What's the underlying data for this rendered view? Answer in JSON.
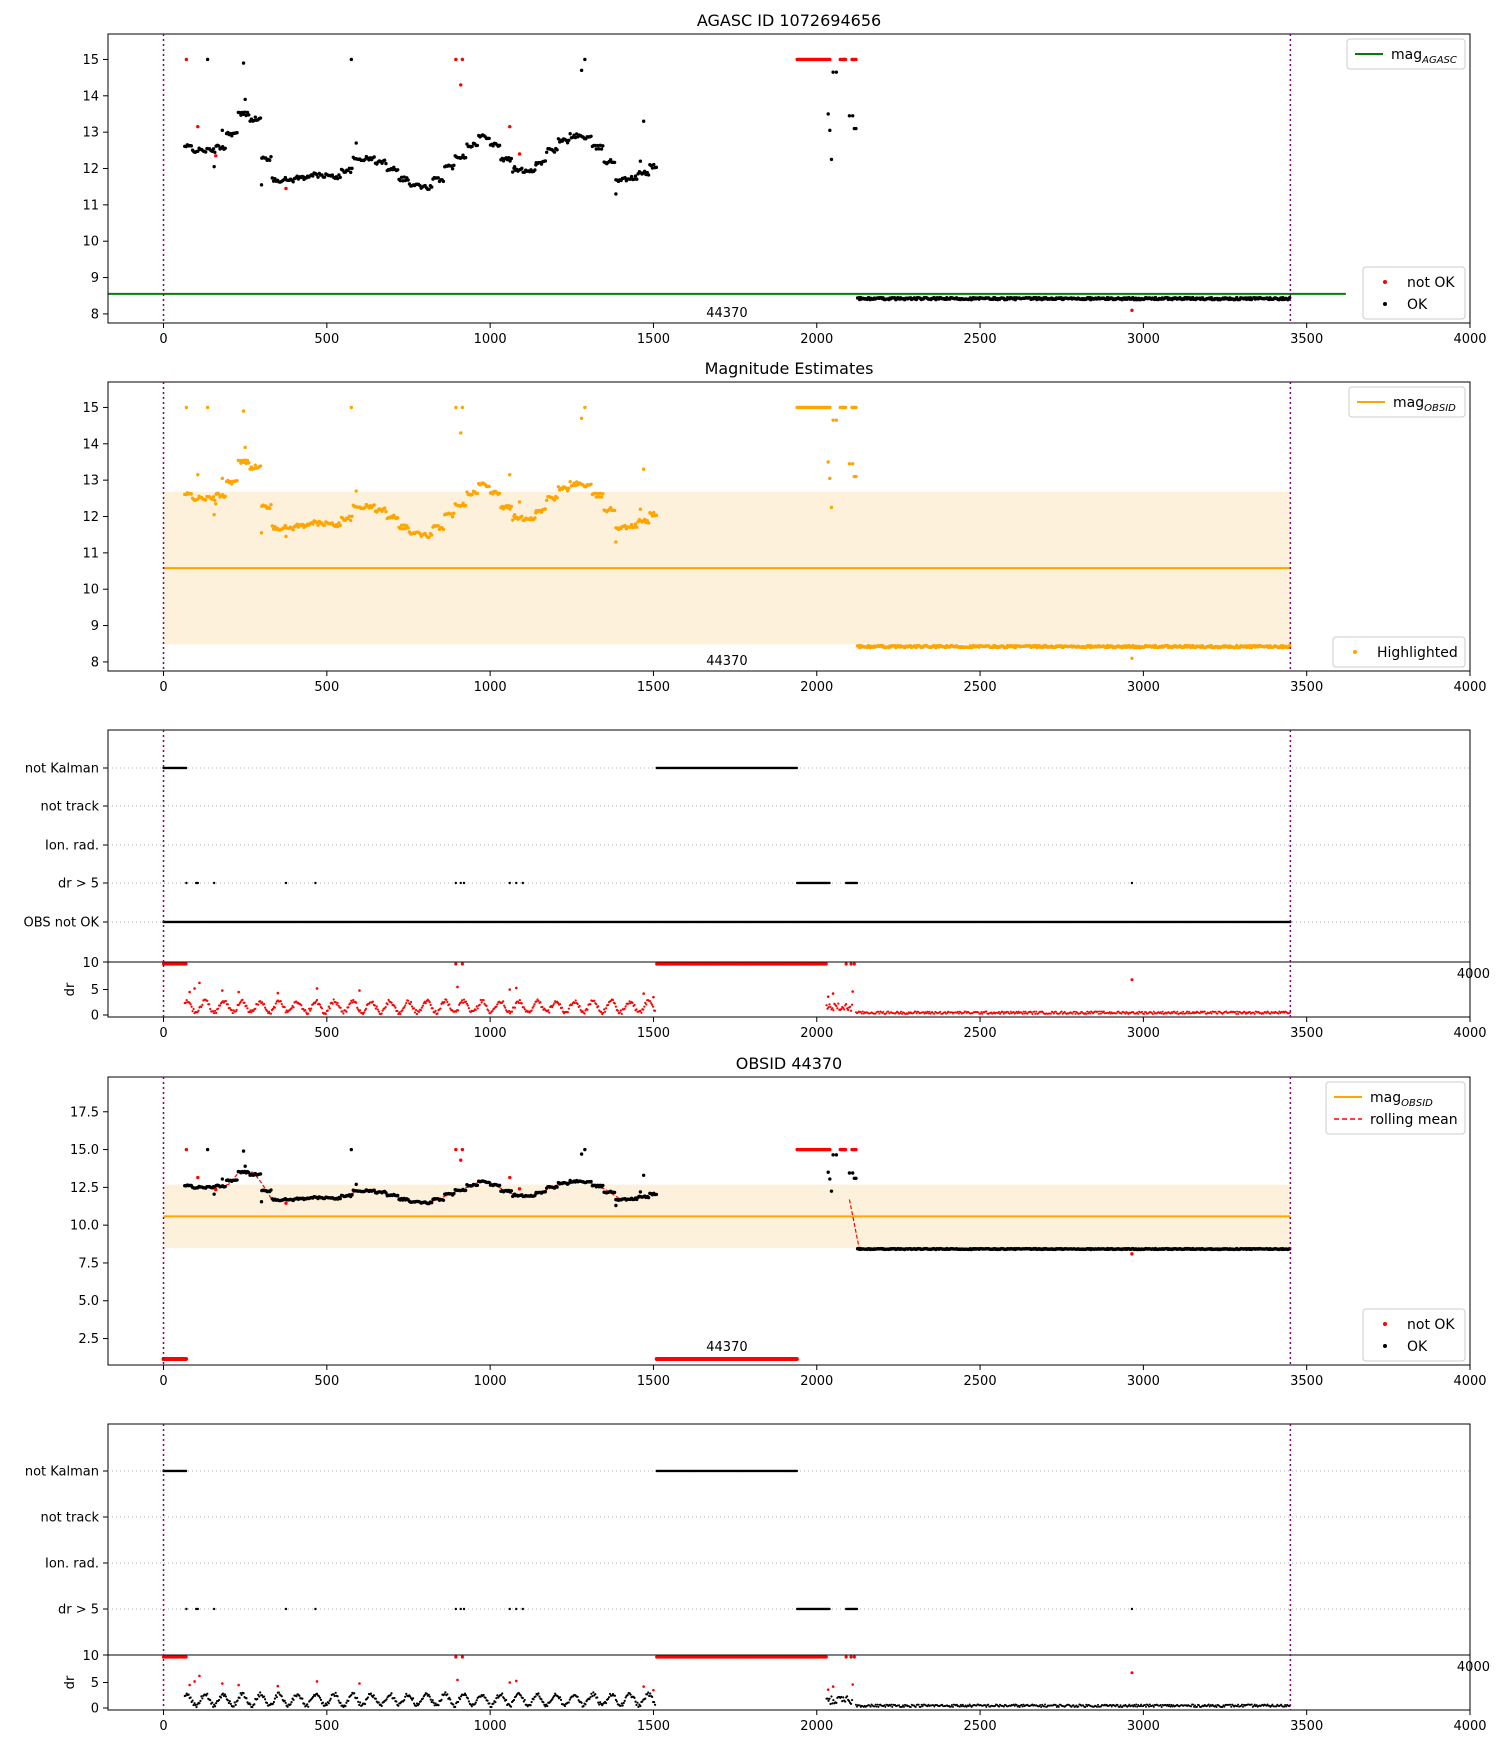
{
  "chart_data": [
    {
      "type": "scatter",
      "panel": "agasc",
      "title": "AGASC ID 1072694656",
      "xlim": [
        -170,
        4000
      ],
      "ylim": [
        7.75,
        15.7
      ],
      "xticks": [
        "0",
        "500",
        "1000",
        "1500",
        "2000",
        "2500",
        "3000",
        "3500",
        "4000"
      ],
      "yticks": [
        "8",
        "9",
        "10",
        "11",
        "12",
        "13",
        "14",
        "15"
      ],
      "obs_label": "44370",
      "obs_bounds": [
        0,
        3450
      ],
      "hlines": [
        {
          "name": "mag_AGASC",
          "y": 8.55,
          "x": [
            -170,
            3620
          ],
          "color": "#008000"
        }
      ],
      "legend_upper": [
        {
          "label": "mag",
          "sub": "AGASC",
          "kind": "line",
          "color": "#008000"
        }
      ],
      "legend_lower": [
        {
          "label": "not OK",
          "kind": "dot",
          "color": "#ff0000"
        },
        {
          "label": "OK",
          "kind": "dot",
          "color": "#000000"
        }
      ],
      "series_ok": {
        "name": "OK",
        "color": "#000000"
      },
      "series_bad": {
        "name": "not OK",
        "color": "#ff0000"
      }
    },
    {
      "type": "scatter",
      "panel": "estimates",
      "title": "Magnitude Estimates",
      "xlim": [
        -170,
        4000
      ],
      "ylim": [
        7.75,
        15.7
      ],
      "xticks": [
        "0",
        "500",
        "1000",
        "1500",
        "2000",
        "2500",
        "3000",
        "3500",
        "4000"
      ],
      "yticks": [
        "8",
        "9",
        "10",
        "11",
        "12",
        "13",
        "14",
        "15"
      ],
      "obs_label": "44370",
      "obs_bounds": [
        0,
        3450
      ],
      "band": {
        "y": [
          8.48,
          12.68
        ],
        "x": [
          0,
          3450
        ],
        "color": "#fdf1dc"
      },
      "hlines": [
        {
          "name": "mag_OBSID",
          "y": 10.58,
          "x": [
            0,
            3450
          ],
          "color": "#ffa500"
        }
      ],
      "legend_upper": [
        {
          "label": "mag",
          "sub": "OBSID",
          "kind": "line",
          "color": "#ffa500"
        }
      ],
      "legend_lower": [
        {
          "label": "Highlighted",
          "kind": "dot",
          "color": "#ffa500"
        }
      ],
      "series_hi": {
        "name": "Highlighted",
        "color": "#ffa500"
      }
    },
    {
      "type": "scatter",
      "panel": "flags1",
      "xlim": [
        -170,
        4000
      ],
      "categories": [
        "not Kalman",
        "not track",
        "Ion. rad.",
        "dr > 5",
        "OBS not OK"
      ],
      "dr_label": "dr",
      "dr_top_label": "10",
      "dr_yticks": [
        "0",
        "5"
      ],
      "xticks": [
        "0",
        "500",
        "1000",
        "1500",
        "2000",
        "2500",
        "3000",
        "3500",
        "4000"
      ],
      "overflow_tick": "4000"
    },
    {
      "type": "line",
      "panel": "obsid",
      "title": "OBSID 44370",
      "xlim": [
        -170,
        4000
      ],
      "ylim": [
        0.75,
        19.8
      ],
      "xticks": [
        "0",
        "500",
        "1000",
        "1500",
        "2000",
        "2500",
        "3000",
        "3500",
        "4000"
      ],
      "yticks": [
        "2.5",
        "5.0",
        "7.5",
        "10.0",
        "12.5",
        "15.0",
        "17.5"
      ],
      "obs_label": "44370",
      "obs_bounds": [
        0,
        3450
      ],
      "band": {
        "y": [
          8.48,
          12.68
        ],
        "x": [
          0,
          3450
        ],
        "color": "#fdf1dc"
      },
      "hlines": [
        {
          "name": "mag_OBSID",
          "y": 10.58,
          "x": [
            0,
            3450
          ],
          "color": "#ffa500"
        }
      ],
      "legend_upper": [
        {
          "label": "mag",
          "sub": "OBSID",
          "kind": "line",
          "color": "#ffa500"
        },
        {
          "label": "rolling mean",
          "kind": "dash",
          "color": "#ff0000"
        }
      ],
      "legend_lower": [
        {
          "label": "not OK",
          "kind": "dot",
          "color": "#ff0000"
        },
        {
          "label": "OK",
          "kind": "dot",
          "color": "#000000"
        }
      ]
    },
    {
      "type": "scatter",
      "panel": "flags2",
      "xlim": [
        -170,
        4000
      ],
      "categories": [
        "not Kalman",
        "not track",
        "Ion. rad.",
        "dr > 5"
      ],
      "dr_label": "dr",
      "dr_top_label": "10",
      "dr_yticks": [
        "0",
        "5"
      ],
      "xticks": [
        "0",
        "500",
        "1000",
        "1500",
        "2000",
        "2500",
        "3000",
        "3500",
        "4000"
      ],
      "overflow_tick": "4000"
    }
  ],
  "colors": {
    "ok": "#000000",
    "not_ok": "#ff0000",
    "highlight": "#ffa500",
    "agasc_line": "#008000",
    "obs_boundary": "#800080",
    "band": "#fdf1dc",
    "grid": "#b0b0b0"
  }
}
